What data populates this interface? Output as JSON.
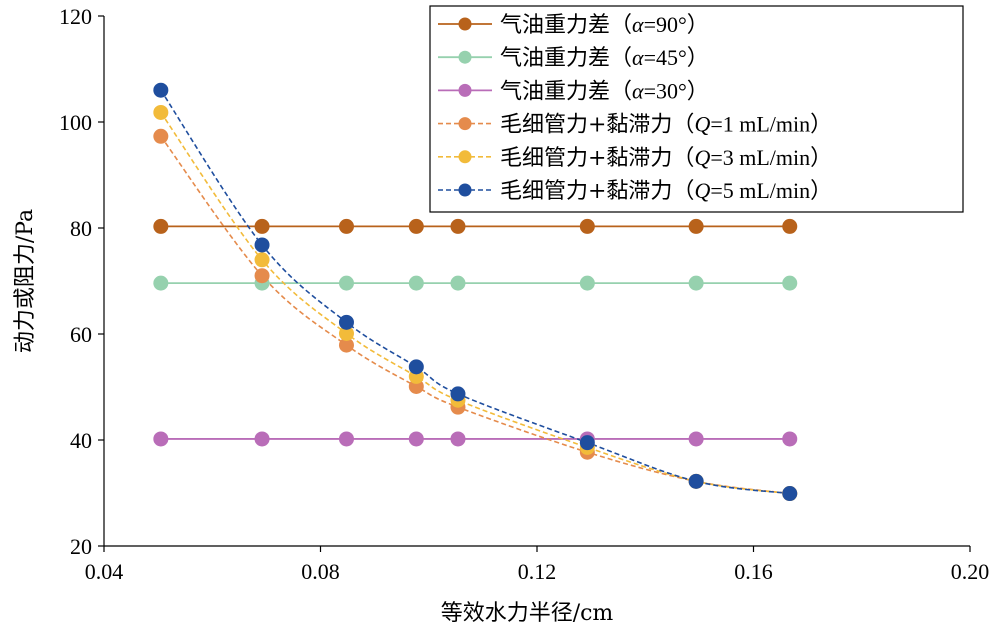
{
  "chart_data": {
    "type": "line",
    "xlabel": "等效水力半径/cm",
    "ylabel": "动力或阻力/Pa",
    "xlim": [
      0.04,
      0.2
    ],
    "ylim": [
      20,
      120
    ],
    "xticks": [
      "0.04",
      "0.08",
      "0.12",
      "0.16",
      "0.20"
    ],
    "yticks": [
      "20",
      "40",
      "60",
      "80",
      "100",
      "120"
    ],
    "grid": false,
    "legend_position": "top-right",
    "series": [
      {
        "name": "气油重力差（α=90°）",
        "legend": {
          "prefix": "气油重力差（",
          "var": "α",
          "suffix": "=90°）"
        },
        "style": "solid",
        "color": "#B8621B",
        "x": [
          0.0505,
          0.0692,
          0.0848,
          0.0977,
          0.1054,
          0.1293,
          0.1494,
          0.1667
        ],
        "y": [
          80.3,
          80.3,
          80.3,
          80.3,
          80.3,
          80.3,
          80.3,
          80.3
        ]
      },
      {
        "name": "气油重力差（α=45°）",
        "legend": {
          "prefix": "气油重力差（",
          "var": "α",
          "suffix": "=45°）"
        },
        "style": "solid",
        "color": "#96D1AE",
        "x": [
          0.0505,
          0.0692,
          0.0848,
          0.0977,
          0.1054,
          0.1293,
          0.1494,
          0.1667
        ],
        "y": [
          69.6,
          69.6,
          69.6,
          69.6,
          69.6,
          69.6,
          69.6,
          69.6
        ]
      },
      {
        "name": "气油重力差（α=30°）",
        "legend": {
          "prefix": "气油重力差（",
          "var": "α",
          "suffix": "=30°）"
        },
        "style": "solid",
        "color": "#B96DB8",
        "x": [
          0.0505,
          0.0692,
          0.0848,
          0.0977,
          0.1054,
          0.1293,
          0.1494,
          0.1667
        ],
        "y": [
          40.2,
          40.2,
          40.2,
          40.2,
          40.2,
          40.2,
          40.2,
          40.2
        ]
      },
      {
        "name": "毛细管力+黏滞力（Q=1 mL/min）",
        "legend": {
          "prefix": "毛细管力+黏滞力（",
          "var": "Q",
          "suffix": "=1 mL/min）"
        },
        "style": "dashed",
        "color": "#E58B4C",
        "x": [
          0.0505,
          0.0692,
          0.0848,
          0.0977,
          0.1054,
          0.1293,
          0.1494,
          0.1667
        ],
        "y": [
          97.3,
          71.0,
          57.9,
          50.1,
          46.2,
          37.7,
          32.2,
          29.9
        ]
      },
      {
        "name": "毛细管力+黏滞力（Q=3 mL/min）",
        "legend": {
          "prefix": "毛细管力+黏滞力（",
          "var": "Q",
          "suffix": "=3 mL/min）"
        },
        "style": "dashed",
        "color": "#F2BB3A",
        "x": [
          0.0505,
          0.0692,
          0.0848,
          0.0977,
          0.1054,
          0.1293,
          0.1494,
          0.1667
        ],
        "y": [
          101.8,
          74.0,
          60.1,
          52.0,
          47.5,
          38.6,
          32.2,
          29.9
        ]
      },
      {
        "name": "毛细管力+黏滞力（Q=5 mL/min）",
        "legend": {
          "prefix": "毛细管力+黏滞力（",
          "var": "Q",
          "suffix": "=5 mL/min）"
        },
        "style": "dashed",
        "color": "#1F4E9E",
        "x": [
          0.0505,
          0.0692,
          0.0848,
          0.0977,
          0.1054,
          0.1293,
          0.1494,
          0.1667
        ],
        "y": [
          106.0,
          76.8,
          62.2,
          53.8,
          48.7,
          39.5,
          32.2,
          29.9
        ]
      }
    ]
  }
}
